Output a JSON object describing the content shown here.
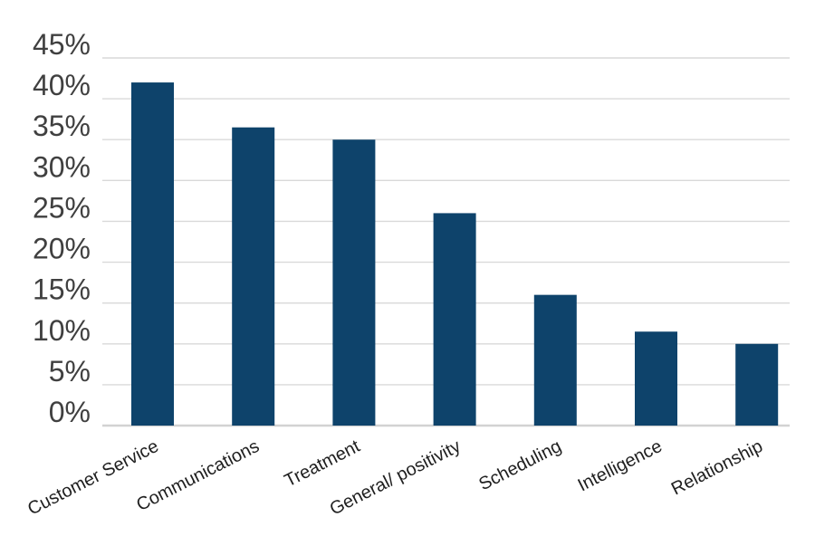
{
  "chart_data": {
    "type": "bar",
    "title": "",
    "xlabel": "",
    "ylabel": "",
    "categories": [
      "Customer Service",
      "Communications",
      "Treatment",
      "General/ positivity",
      "Scheduling",
      "Intelligence",
      "Relationship"
    ],
    "values": [
      42,
      36.5,
      35,
      26,
      16,
      11.5,
      10
    ],
    "ylim": [
      0,
      45
    ],
    "ytick_step": 5,
    "ytick_labels": [
      "0%",
      "5%",
      "10%",
      "15%",
      "20%",
      "25%",
      "30%",
      "35%",
      "40%",
      "45%"
    ],
    "grid": true,
    "legend": false,
    "colors": {
      "bar": "#0e436b",
      "gridline": "#d9d9d9",
      "axis_line": "#d2d2d2",
      "ytick_label": "#404040",
      "category_label": "#1f1f1f",
      "background": "#ffffff"
    },
    "category_label_rotation_deg": -27
  }
}
